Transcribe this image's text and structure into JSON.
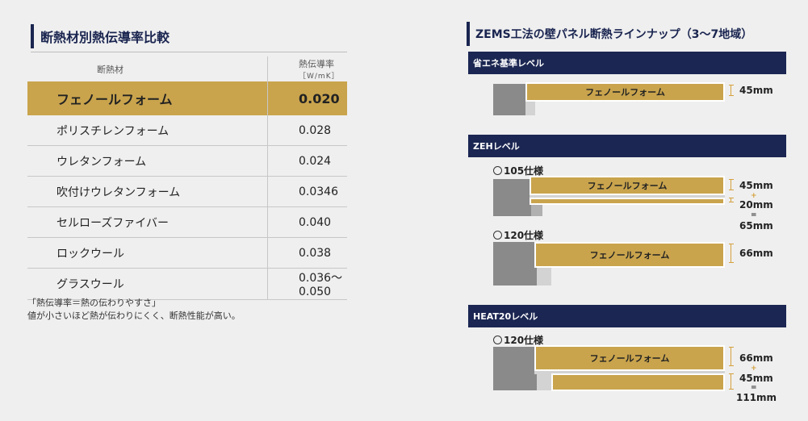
{
  "left": {
    "title": "断熱材別熱伝導率比較",
    "header_material": "断熱材",
    "header_conductivity": "熱伝導率",
    "header_unit": "［W/mK］",
    "rows": [
      {
        "name": "フェノールフォーム",
        "value": "0.020"
      },
      {
        "name": "ポリスチレンフォーム",
        "value": "0.028"
      },
      {
        "name": "ウレタンフォーム",
        "value": "0.024"
      },
      {
        "name": "吹付けウレタンフォーム",
        "value": "0.0346"
      },
      {
        "name": "セルローズファイバー",
        "value": "0.040"
      },
      {
        "name": "ロックウール",
        "value": "0.038"
      },
      {
        "name": "グラスウール",
        "value": "0.036〜0.050"
      }
    ],
    "note_line1": "「熱伝導率＝熱の伝わりやすさ」",
    "note_line2": "値が小さいほど熱が伝わりにくく、断熱性能が高い。"
  },
  "right": {
    "title": "ZEMS工法の壁パネル断熱ラインナップ（3〜7地域）",
    "section1": {
      "label": "省エネ基準レベル",
      "board": "フェノールフォーム",
      "dim": "45mm"
    },
    "section2": {
      "label": "ZEHレベル",
      "spec105": "105仕様",
      "board105": "フェノールフォーム",
      "dim105_a": "45mm",
      "plus": "+",
      "dim105_b": "20mm",
      "eq": "=",
      "dim105_total": "65mm",
      "spec120": "120仕様",
      "board120": "フェノールフォーム",
      "dim120": "66mm"
    },
    "section3": {
      "label": "HEAT20レベル",
      "spec120": "120仕様",
      "board": "フェノールフォーム",
      "dim_a": "66mm",
      "plus": "+",
      "dim_b": "45mm",
      "eq": "=",
      "dim_total": "111mm"
    },
    "colors": {
      "navy": "#1b2652",
      "gold": "#c9a44d",
      "accent": "#d5a03c"
    }
  }
}
